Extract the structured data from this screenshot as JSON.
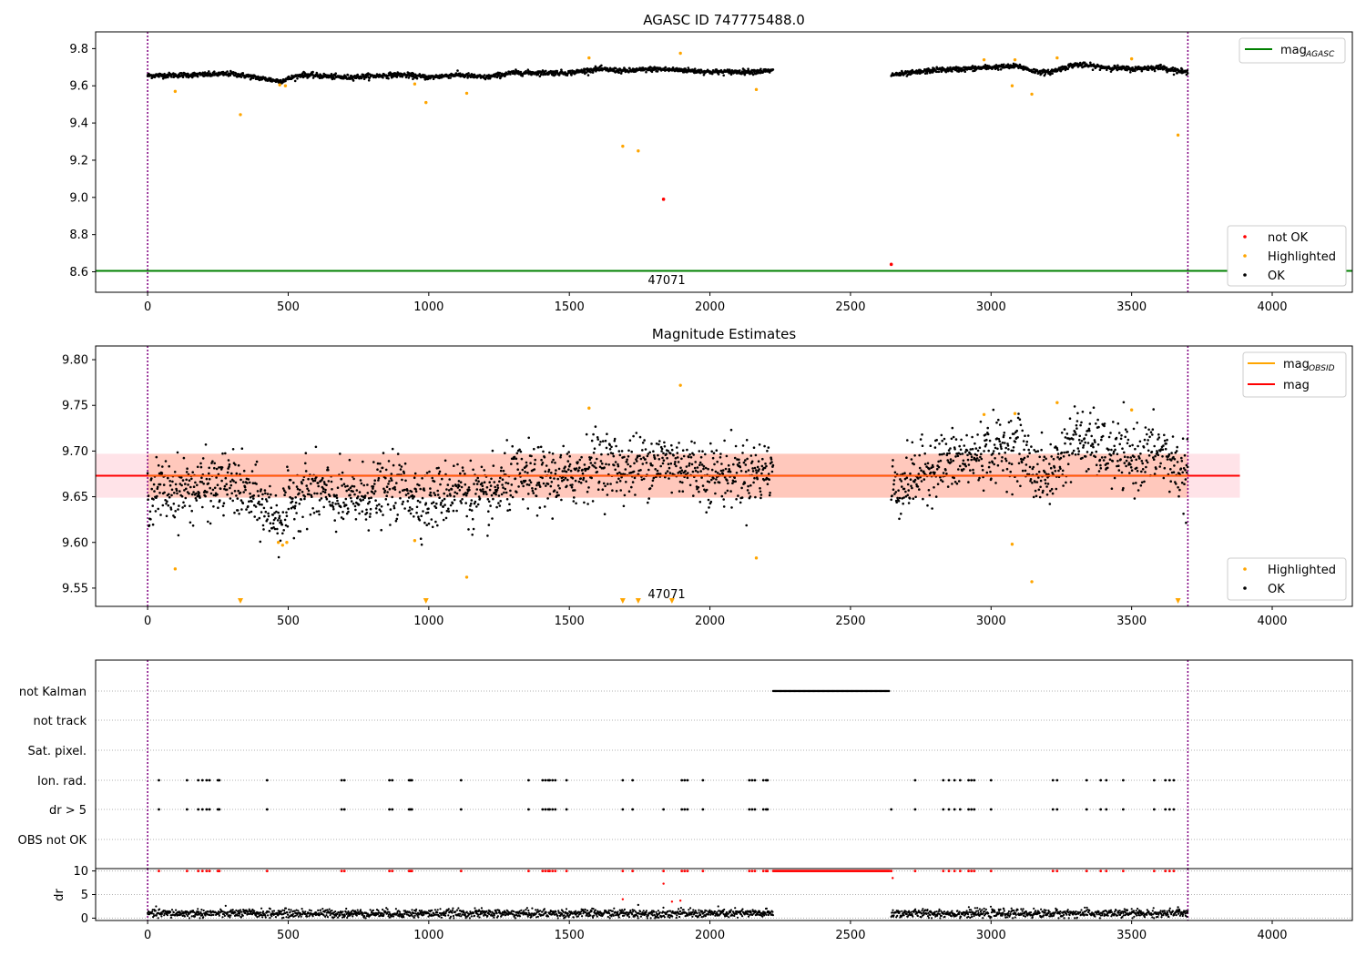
{
  "figure": {
    "panel1_title": "AGASC ID 747775488.0",
    "panel2_title": "Magnitude Estimates",
    "obsid_label": "47071"
  },
  "colors": {
    "ok": "#000000",
    "highlighted": "#ffa500",
    "not_ok": "#ff0000",
    "agasc_line": "#008000",
    "mag_line": "#ff0000",
    "band": "#ffc0cb",
    "obsid_band": "#ffa07a",
    "obsid_bounds": "#800080",
    "grid": "#b0b0b0"
  },
  "chart_data": [
    {
      "type": "scatter",
      "title": "AGASC ID 747775488.0",
      "xlim": [
        -185,
        4285
      ],
      "ylim": [
        8.49,
        9.89
      ],
      "xticks": [
        0,
        500,
        1000,
        1500,
        2000,
        2500,
        3000,
        3500,
        4000
      ],
      "yticks": [
        8.6,
        8.8,
        9.0,
        9.2,
        9.4,
        9.6,
        9.8
      ],
      "ytick_labels": [
        "8.6",
        "8.8",
        "9.0",
        "9.2",
        "9.4",
        "9.6",
        "9.8"
      ],
      "mag_agasc": 8.605,
      "obsid_bounds": [
        0,
        3700
      ],
      "obsid_label": "47071",
      "legend_lines": [
        {
          "label": "mag",
          "sub": "AGASC",
          "color": "#008000"
        }
      ],
      "legend_markers": [
        {
          "label": "not OK",
          "color": "#ff0000"
        },
        {
          "label": "Highlighted",
          "color": "#ffa500"
        },
        {
          "label": "OK",
          "color": "#000000"
        }
      ],
      "ok_segments": [
        {
          "x0": 0,
          "x1": 2225,
          "knots": [
            [
              0,
              9.655
            ],
            [
              200,
              9.66
            ],
            [
              300,
              9.665
            ],
            [
              470,
              9.625
            ],
            [
              550,
              9.66
            ],
            [
              700,
              9.645
            ],
            [
              900,
              9.66
            ],
            [
              1000,
              9.645
            ],
            [
              1100,
              9.66
            ],
            [
              1200,
              9.645
            ],
            [
              1300,
              9.67
            ],
            [
              1500,
              9.67
            ],
            [
              1600,
              9.69
            ],
            [
              1700,
              9.68
            ],
            [
              1800,
              9.69
            ],
            [
              1900,
              9.685
            ],
            [
              2000,
              9.675
            ],
            [
              2100,
              9.675
            ],
            [
              2225,
              9.68
            ]
          ]
        },
        {
          "x0": 2645,
          "x1": 3700,
          "knots": [
            [
              2645,
              9.66
            ],
            [
              2700,
              9.665
            ],
            [
              2800,
              9.685
            ],
            [
              2900,
              9.69
            ],
            [
              3000,
              9.7
            ],
            [
              3100,
              9.705
            ],
            [
              3150,
              9.68
            ],
            [
              3200,
              9.67
            ],
            [
              3300,
              9.715
            ],
            [
              3400,
              9.7
            ],
            [
              3500,
              9.69
            ],
            [
              3600,
              9.7
            ],
            [
              3700,
              9.67
            ]
          ]
        }
      ],
      "ok_noise": 0.012,
      "highlighted": [
        [
          98,
          9.57
        ],
        [
          330,
          9.445
        ],
        [
          470,
          9.605
        ],
        [
          490,
          9.6
        ],
        [
          950,
          9.61
        ],
        [
          990,
          9.51
        ],
        [
          1135,
          9.56
        ],
        [
          1570,
          9.75
        ],
        [
          1690,
          9.275
        ],
        [
          1745,
          9.25
        ],
        [
          1895,
          9.775
        ],
        [
          2165,
          9.58
        ],
        [
          2975,
          9.74
        ],
        [
          3075,
          9.6
        ],
        [
          3085,
          9.74
        ],
        [
          3145,
          9.555
        ],
        [
          3235,
          9.75
        ],
        [
          3500,
          9.745
        ],
        [
          3665,
          9.335
        ]
      ],
      "not_ok": [
        [
          1835,
          8.99
        ],
        [
          2645,
          8.64
        ]
      ]
    },
    {
      "type": "scatter",
      "title": "Magnitude Estimates",
      "xlim": [
        -185,
        4285
      ],
      "ylim": [
        9.53,
        9.815
      ],
      "xticks": [
        0,
        500,
        1000,
        1500,
        2000,
        2500,
        3000,
        3500,
        4000
      ],
      "yticks": [
        9.55,
        9.6,
        9.65,
        9.7,
        9.75,
        9.8
      ],
      "ytick_labels": [
        "9.55",
        "9.60",
        "9.65",
        "9.70",
        "9.75",
        "9.80"
      ],
      "mag": 9.673,
      "mag_band": [
        9.649,
        9.697
      ],
      "mag_band_x": [
        -185,
        3885
      ],
      "mag_obsid": 9.673,
      "obsid_band": [
        9.649,
        9.697
      ],
      "obsid_bounds": [
        0,
        3700
      ],
      "obsid_label": "47071",
      "legend_lines": [
        {
          "label": "mag",
          "sub": "OBSID",
          "color": "#ffa500"
        },
        {
          "label": "mag",
          "sub": "",
          "color": "#ff0000"
        }
      ],
      "legend_markers": [
        {
          "label": "Highlighted",
          "color": "#ffa500"
        },
        {
          "label": "OK",
          "color": "#000000"
        }
      ],
      "ok_noise": 0.017,
      "highlighted": [
        [
          98,
          9.571
        ],
        [
          465,
          9.6
        ],
        [
          480,
          9.597
        ],
        [
          495,
          9.6
        ],
        [
          950,
          9.602
        ],
        [
          1135,
          9.562
        ],
        [
          1570,
          9.747
        ],
        [
          1895,
          9.772
        ],
        [
          2165,
          9.583
        ],
        [
          2975,
          9.74
        ],
        [
          3075,
          9.598
        ],
        [
          3085,
          9.741
        ],
        [
          3145,
          9.557
        ],
        [
          3235,
          9.753
        ],
        [
          3500,
          9.745
        ]
      ],
      "below_range_markers": [
        330,
        990,
        1690,
        1745,
        1865,
        3665
      ]
    },
    {
      "type": "scatter",
      "title": "",
      "xlim": [
        -185,
        4285
      ],
      "xticks": [
        0,
        500,
        1000,
        1500,
        2000,
        2500,
        3000,
        3500,
        4000
      ],
      "flag_rows": [
        "not Kalman",
        "not track",
        "Sat. pixel.",
        "Ion. rad.",
        "dr > 5",
        "OBS not OK"
      ],
      "not_kalman_range": [
        2225,
        2640
      ],
      "ion_rad_x": [
        40,
        140,
        180,
        195,
        210,
        220,
        250,
        255,
        425,
        690,
        700,
        860,
        870,
        930,
        935,
        940,
        1115,
        1355,
        1405,
        1415,
        1425,
        1430,
        1440,
        1450,
        1490,
        1690,
        1725,
        1900,
        1910,
        1920,
        1975,
        2140,
        2150,
        2160,
        2190,
        2200,
        2205,
        2730,
        2830,
        2850,
        2870,
        2890,
        2920,
        2930,
        2940,
        3000,
        3220,
        3235,
        3340,
        3390,
        3410,
        3470,
        3580,
        3620,
        3635,
        3650
      ],
      "dr_gt5_x": [
        40,
        140,
        180,
        195,
        210,
        220,
        250,
        255,
        425,
        690,
        700,
        860,
        870,
        930,
        935,
        940,
        1115,
        1355,
        1405,
        1415,
        1425,
        1430,
        1440,
        1450,
        1490,
        1690,
        1725,
        1835,
        1900,
        1910,
        1920,
        1975,
        2140,
        2150,
        2160,
        2190,
        2200,
        2205,
        2645,
        2730,
        2830,
        2850,
        2870,
        2890,
        2920,
        2930,
        2940,
        3000,
        3220,
        3235,
        3340,
        3390,
        3410,
        3470,
        3580,
        3620,
        3635,
        3650
      ],
      "dr": {
        "ylabel": "dr",
        "ylim": [
          0,
          10
        ],
        "yticks": [
          0,
          5,
          10
        ],
        "clip_value": 10,
        "segments": [
          [
            0,
            2225
          ],
          [
            2645,
            3700
          ]
        ],
        "baseline": 1.0,
        "outliers_red": [
          [
            1690,
            4.0
          ],
          [
            1835,
            7.3
          ],
          [
            1865,
            3.5
          ],
          [
            1895,
            3.7
          ],
          [
            2650,
            8.5
          ]
        ],
        "outliers_black": [
          [
            1745,
            2.8
          ],
          [
            3665,
            2.3
          ]
        ]
      }
    }
  ]
}
